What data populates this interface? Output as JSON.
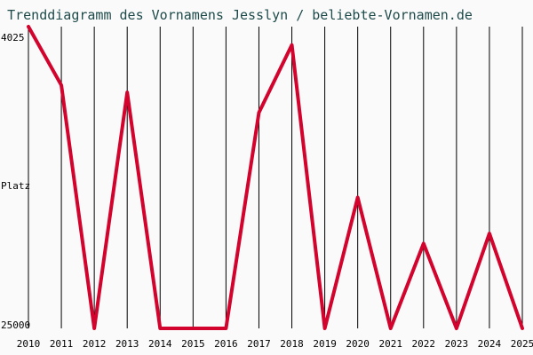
{
  "chart_data": {
    "type": "line",
    "title": "Trenddiagramm des Vornamens Jesslyn / beliebte-Vornamen.de",
    "ylabel": "Platz",
    "y_axis_inverted": true,
    "ylim": [
      4025,
      25000
    ],
    "y_tick_labels": [
      "4025",
      "Platz",
      "25000"
    ],
    "x": [
      "2010",
      "2011",
      "2012",
      "2013",
      "2014",
      "2015",
      "2016",
      "2017",
      "2018",
      "2019",
      "2020",
      "2021",
      "2022",
      "2023",
      "2024",
      "2025"
    ],
    "series": [
      {
        "values": [
          4025,
          8100,
          25000,
          8600,
          25000,
          25000,
          25000,
          10000,
          5300,
          25000,
          15900,
          25000,
          19100,
          25000,
          18400,
          25000
        ]
      }
    ],
    "grid": "vertical",
    "colors": {
      "line": "#d2042d",
      "grid": "#000000",
      "background": "#fafafa",
      "title": "#1e4a4a"
    }
  }
}
